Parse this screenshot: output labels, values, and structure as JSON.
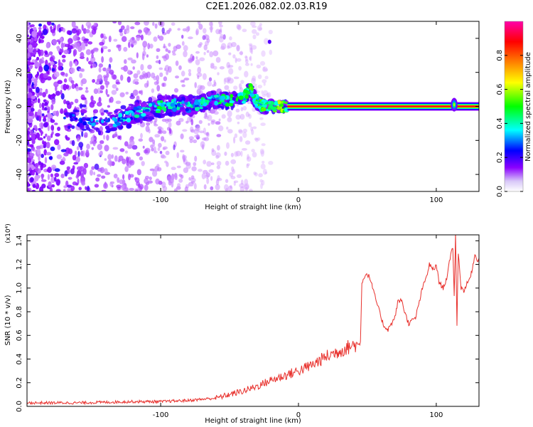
{
  "page": {
    "title": "C2E1.2026.082.02.03.R19"
  },
  "chart_data": [
    {
      "type": "heatmap",
      "title": "C2E1.2026.082.02.03.R19",
      "xlabel": "Height of straight line (km)",
      "ylabel": "Frequency (Hz)",
      "xlim": [
        -197,
        131
      ],
      "ylim": [
        -50,
        50
      ],
      "x_ticks": [
        -100,
        0,
        100
      ],
      "x_tick_labels": [
        "-100",
        "0",
        "100"
      ],
      "y_ticks": [
        -40,
        -20,
        0,
        20,
        40
      ],
      "y_tick_labels": [
        "-40",
        "-20",
        "0",
        "20",
        "40"
      ],
      "colorbar": {
        "label": "Normalized spectral amplitude",
        "range": [
          0,
          1
        ],
        "ticks": [
          0.0,
          0.2,
          0.4,
          0.6,
          0.8
        ],
        "tick_labels": [
          "0.0",
          "0.2",
          "0.4",
          "0.6",
          "0.8"
        ],
        "colormap": [
          "#ffffff",
          "#8b00ff",
          "#0000ff",
          "#00ffff",
          "#00ff00",
          "#ffff00",
          "#ff8000",
          "#ff0000",
          "#ff00aa"
        ]
      },
      "features": {
        "carrier_line_frequency_hz": 0,
        "carrier_line_start_km": -8,
        "carrier_line_end_km": 131,
        "carrier_amplitude": 0.95,
        "noise_region_end_km": -60,
        "spike_height_km": 113,
        "spike_frequency_hz": 1,
        "outlier_point": {
          "x": -21,
          "y": 38
        }
      },
      "ridge_points": [
        {
          "x": -170,
          "y": -5,
          "a": 0.3
        },
        {
          "x": -135,
          "y": -10,
          "a": 0.35
        },
        {
          "x": -120,
          "y": -4,
          "a": 0.4
        },
        {
          "x": -110,
          "y": -2,
          "a": 0.45
        },
        {
          "x": -100,
          "y": 0,
          "a": 0.45
        },
        {
          "x": -90,
          "y": 1,
          "a": 0.4
        },
        {
          "x": -80,
          "y": 0,
          "a": 0.4
        },
        {
          "x": -70,
          "y": 2,
          "a": 0.45
        },
        {
          "x": -60,
          "y": 4,
          "a": 0.45
        },
        {
          "x": -50,
          "y": 3,
          "a": 0.5
        },
        {
          "x": -40,
          "y": 5,
          "a": 0.5
        },
        {
          "x": -35,
          "y": 10,
          "a": 0.5
        },
        {
          "x": -30,
          "y": 2,
          "a": 0.5
        },
        {
          "x": -25,
          "y": 0,
          "a": 0.55
        },
        {
          "x": -15,
          "y": 0,
          "a": 0.6
        },
        {
          "x": -8,
          "y": 0,
          "a": 0.9
        }
      ]
    },
    {
      "type": "line",
      "xlabel": "Height of straight line (km)",
      "ylabel": "SNR (10 * v/v)",
      "y_scale_label": "(x10⁴)",
      "xlim": [
        -197,
        131
      ],
      "ylim": [
        0,
        1.45
      ],
      "x_ticks": [
        -100,
        0,
        100
      ],
      "x_tick_labels": [
        "-100",
        "0",
        "100"
      ],
      "y_ticks": [
        0.0,
        0.2,
        0.4,
        0.6,
        0.8,
        1.0,
        1.2,
        1.4
      ],
      "y_tick_labels": [
        "0.0",
        "0.2",
        "0.4",
        "0.6",
        "0.8",
        "1.0",
        "1.2",
        "1.4"
      ],
      "color": "#e8302c",
      "series": [
        {
          "name": "SNR",
          "x": [
            -197,
            -180,
            -160,
            -140,
            -120,
            -100,
            -90,
            -80,
            -70,
            -60,
            -50,
            -40,
            -30,
            -20,
            -10,
            0,
            10,
            20,
            30,
            40,
            44,
            45,
            46,
            48,
            50,
            52,
            55,
            60,
            62,
            65,
            70,
            72,
            75,
            77,
            80,
            85,
            90,
            93,
            95,
            98,
            100,
            102,
            105,
            108,
            110,
            112,
            113,
            114,
            115,
            116,
            118,
            120,
            125,
            128,
            131
          ],
          "y": [
            0.03,
            0.03,
            0.03,
            0.035,
            0.04,
            0.04,
            0.045,
            0.05,
            0.06,
            0.07,
            0.1,
            0.13,
            0.17,
            0.22,
            0.26,
            0.3,
            0.35,
            0.42,
            0.47,
            0.52,
            0.52,
            0.55,
            1.05,
            1.1,
            1.12,
            1.08,
            0.95,
            0.75,
            0.68,
            0.65,
            0.75,
            0.88,
            0.9,
            0.8,
            0.7,
            0.75,
            1.0,
            1.1,
            1.2,
            1.15,
            1.2,
            1.05,
            1.0,
            1.1,
            1.25,
            1.35,
            0.95,
            1.45,
            0.7,
            1.3,
            1.0,
            0.98,
            1.1,
            1.28,
            1.22
          ]
        }
      ]
    }
  ]
}
